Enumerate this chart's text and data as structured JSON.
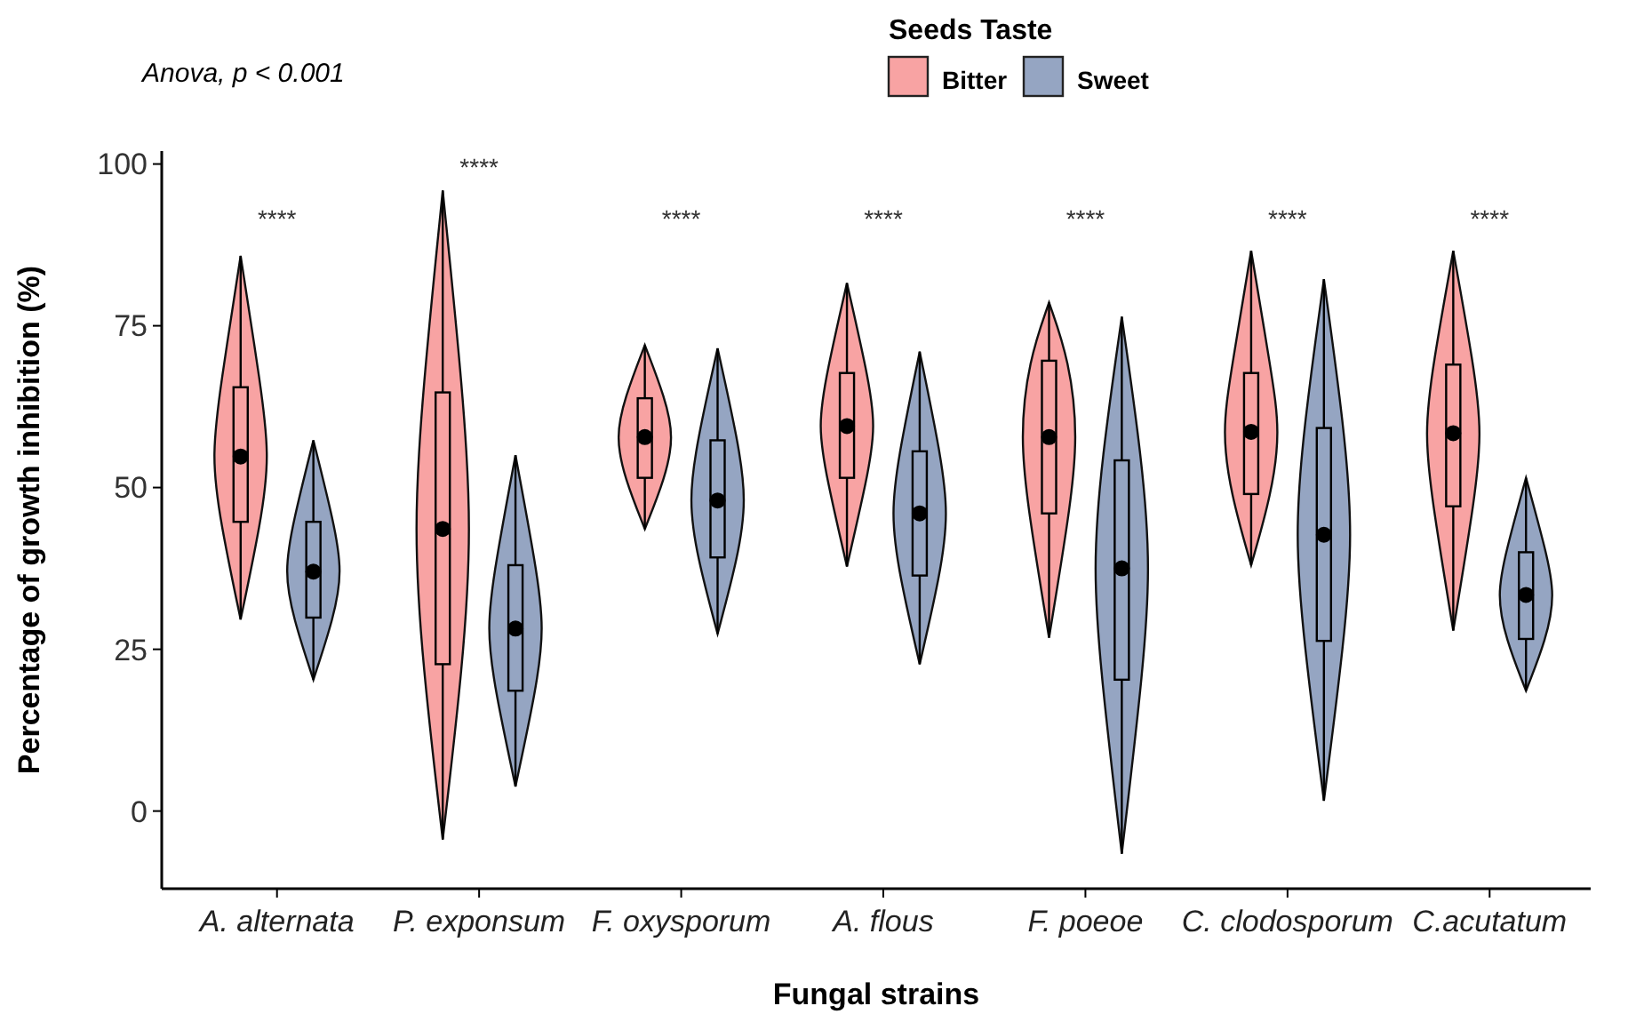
{
  "chart_data": {
    "type": "box",
    "xlabel": "Fungal strains",
    "ylabel": "Percentage of growth inhibition (%)",
    "legend_title": "Seeds Taste",
    "legend": "top",
    "categories": [
      "A. alternata",
      "P. exponsum",
      "F. oxysporum",
      "A. flous",
      "F. poeoe",
      "C. clodosporum",
      "C.acutatum"
    ],
    "ylim": [
      -12,
      102
    ],
    "yticks": [
      0,
      25,
      50,
      75,
      100
    ],
    "series": [
      {
        "name": "Bitter",
        "color": "#f8a3a3",
        "boxes": [
          {
            "low": 29.6,
            "q1": 44.7,
            "median": 54.8,
            "q3": 65.5,
            "high": 85.8
          },
          {
            "low": -4.4,
            "q1": 22.7,
            "median": 43.6,
            "q3": 64.7,
            "high": 95.9
          },
          {
            "low": 43.6,
            "q1": 51.5,
            "median": 57.8,
            "q3": 63.8,
            "high": 72
          },
          {
            "low": 37.8,
            "q1": 51.5,
            "median": 59.5,
            "q3": 67.7,
            "high": 81.6
          },
          {
            "low": 26.8,
            "q1": 46,
            "median": 57.8,
            "q3": 69.6,
            "high": 78.6
          },
          {
            "low": 38,
            "q1": 49,
            "median": 58.6,
            "q3": 67.7,
            "high": 86.6
          },
          {
            "low": 27.9,
            "q1": 47.1,
            "median": 58.4,
            "q3": 69,
            "high": 86.6
          }
        ]
      },
      {
        "name": "Sweet",
        "color": "#95a5c2",
        "boxes": [
          {
            "low": 20.3,
            "q1": 29.9,
            "median": 37,
            "q3": 44.7,
            "high": 57.3
          },
          {
            "low": 3.8,
            "q1": 18.6,
            "median": 28.2,
            "q3": 38,
            "high": 55
          },
          {
            "low": 27.4,
            "q1": 39.2,
            "median": 48,
            "q3": 57.3,
            "high": 71.5
          },
          {
            "low": 22.7,
            "q1": 36.4,
            "median": 46,
            "q3": 55.6,
            "high": 71
          },
          {
            "low": -6.6,
            "q1": 20.3,
            "median": 37.5,
            "q3": 54.2,
            "high": 76.4
          },
          {
            "low": 1.6,
            "q1": 26.3,
            "median": 42.7,
            "q3": 59.2,
            "high": 82.2
          },
          {
            "low": 18.6,
            "q1": 26.6,
            "median": 33.4,
            "q3": 40,
            "high": 51.5
          }
        ]
      }
    ],
    "annotations": [
      "Anova, p < 0.001",
      "****",
      "****",
      "****",
      "****",
      "****",
      "****",
      "****"
    ]
  }
}
